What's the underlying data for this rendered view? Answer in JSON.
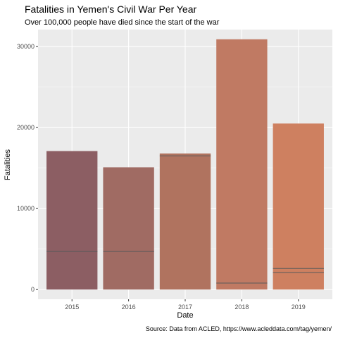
{
  "chart_data": {
    "type": "bar",
    "title": "Fatalities in Yemen's Civil War Per Year",
    "subtitle": "Over 100,000 people have died since the start of the war",
    "caption": "Source: Data from ACLED, https://www.acleddata.com/tag/yemen/",
    "xlabel": "Date",
    "ylabel": "Fatalities",
    "categories": [
      "2015",
      "2016",
      "2017",
      "2018",
      "2019"
    ],
    "values": [
      17100,
      15100,
      16800,
      30900,
      20500
    ],
    "internal_segment_lines": [
      [
        4700
      ],
      [
        4700
      ],
      [
        16500
      ],
      [
        800
      ],
      [
        2100,
        2600
      ]
    ],
    "ylim": [
      -1200,
      32100
    ],
    "yticks": [
      0,
      10000,
      20000,
      30000
    ],
    "ytick_labels": [
      "0",
      "10000",
      "20000",
      "30000"
    ],
    "grid": true,
    "legend": "none",
    "colors": {
      "panel": "#EBEBEB",
      "grid_major": "#FFFFFF",
      "segment_line": "#5A5A5A",
      "bars": [
        "#8C5E63",
        "#A06B63",
        "#B0735F",
        "#C07A63",
        "#CE8060"
      ]
    }
  }
}
